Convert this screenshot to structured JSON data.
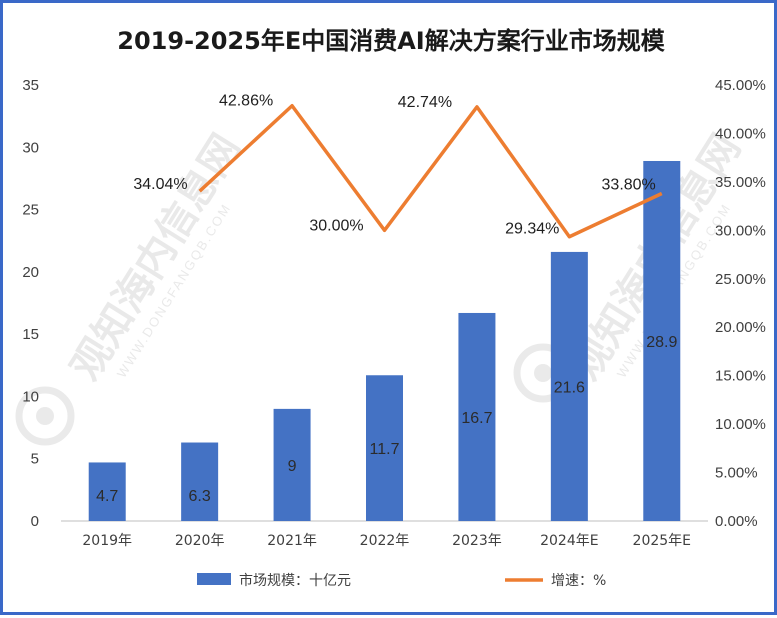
{
  "chart_data": {
    "type": "bar",
    "title": "2019-2025年E中国消费AI解决方案行业市场规模",
    "categories": [
      "2019年",
      "2020年",
      "2021年",
      "2022年",
      "2023年",
      "2024年E",
      "2025年E"
    ],
    "series": [
      {
        "name": "市场规模：十亿元",
        "type": "bar",
        "axis": "left",
        "color": "#4472c4",
        "values": [
          4.7,
          6.3,
          9,
          11.7,
          16.7,
          21.6,
          28.9
        ],
        "labels": [
          "4.7",
          "6.3",
          "9",
          "11.7",
          "16.7",
          "21.6",
          "28.9"
        ]
      },
      {
        "name": "增速：%",
        "type": "line",
        "axis": "right",
        "color": "#ed7d31",
        "values": [
          null,
          34.04,
          42.86,
          30.0,
          42.74,
          29.34,
          33.8
        ],
        "labels": [
          "",
          "34.04%",
          "42.86%",
          "30.00%",
          "42.74%",
          "29.34%",
          "33.80%"
        ]
      }
    ],
    "y_left": {
      "range": [
        0,
        35
      ],
      "ticks": [
        0,
        5,
        10,
        15,
        20,
        25,
        30,
        35
      ],
      "tick_labels": [
        "0",
        "5",
        "10",
        "15",
        "20",
        "25",
        "30",
        "35"
      ]
    },
    "y_right": {
      "range": [
        0,
        45
      ],
      "ticks": [
        0,
        5,
        10,
        15,
        20,
        25,
        30,
        35,
        40,
        45
      ],
      "tick_labels": [
        "0.00%",
        "5.00%",
        "10.00%",
        "15.00%",
        "20.00%",
        "25.00%",
        "30.00%",
        "35.00%",
        "40.00%",
        "45.00%"
      ]
    },
    "grid": false,
    "legend": "bottom"
  },
  "watermark": {
    "text": "观知海内信息网",
    "sub": "WWW.DONGFANGQB.COM"
  }
}
